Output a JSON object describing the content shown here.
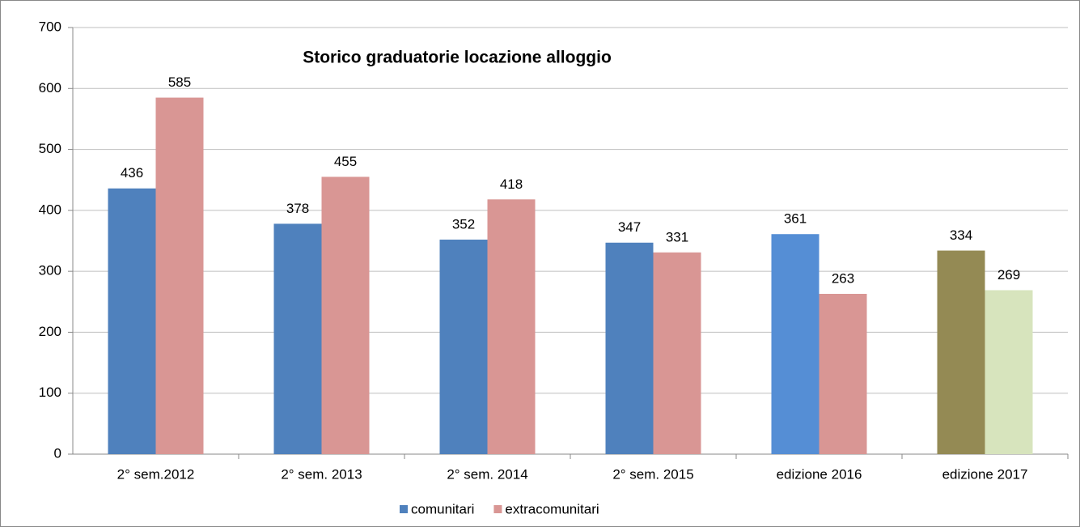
{
  "chart_data": {
    "type": "bar",
    "title": "Storico graduatorie locazione alloggio",
    "categories": [
      "2° sem.2012",
      "2° sem. 2013",
      "2° sem. 2014",
      "2° sem. 2015",
      "edizione 2016",
      "edizione 2017"
    ],
    "series": [
      {
        "name": "comunitari",
        "color": "#4f81bd",
        "colors": [
          "#4f81bd",
          "#4f81bd",
          "#4f81bd",
          "#4f81bd",
          "#558ed5",
          "#948a54"
        ],
        "values": [
          436,
          378,
          352,
          347,
          361,
          334
        ]
      },
      {
        "name": "extracomunitari",
        "color": "#d99694",
        "colors": [
          "#d99694",
          "#d99694",
          "#d99694",
          "#d99694",
          "#d99694",
          "#d7e4bd"
        ],
        "values": [
          585,
          455,
          418,
          331,
          263,
          269
        ]
      }
    ],
    "ylim": [
      0,
      700
    ],
    "yticks": [
      0,
      100,
      200,
      300,
      400,
      500,
      600,
      700
    ],
    "grid": true,
    "legend": "bottom"
  }
}
